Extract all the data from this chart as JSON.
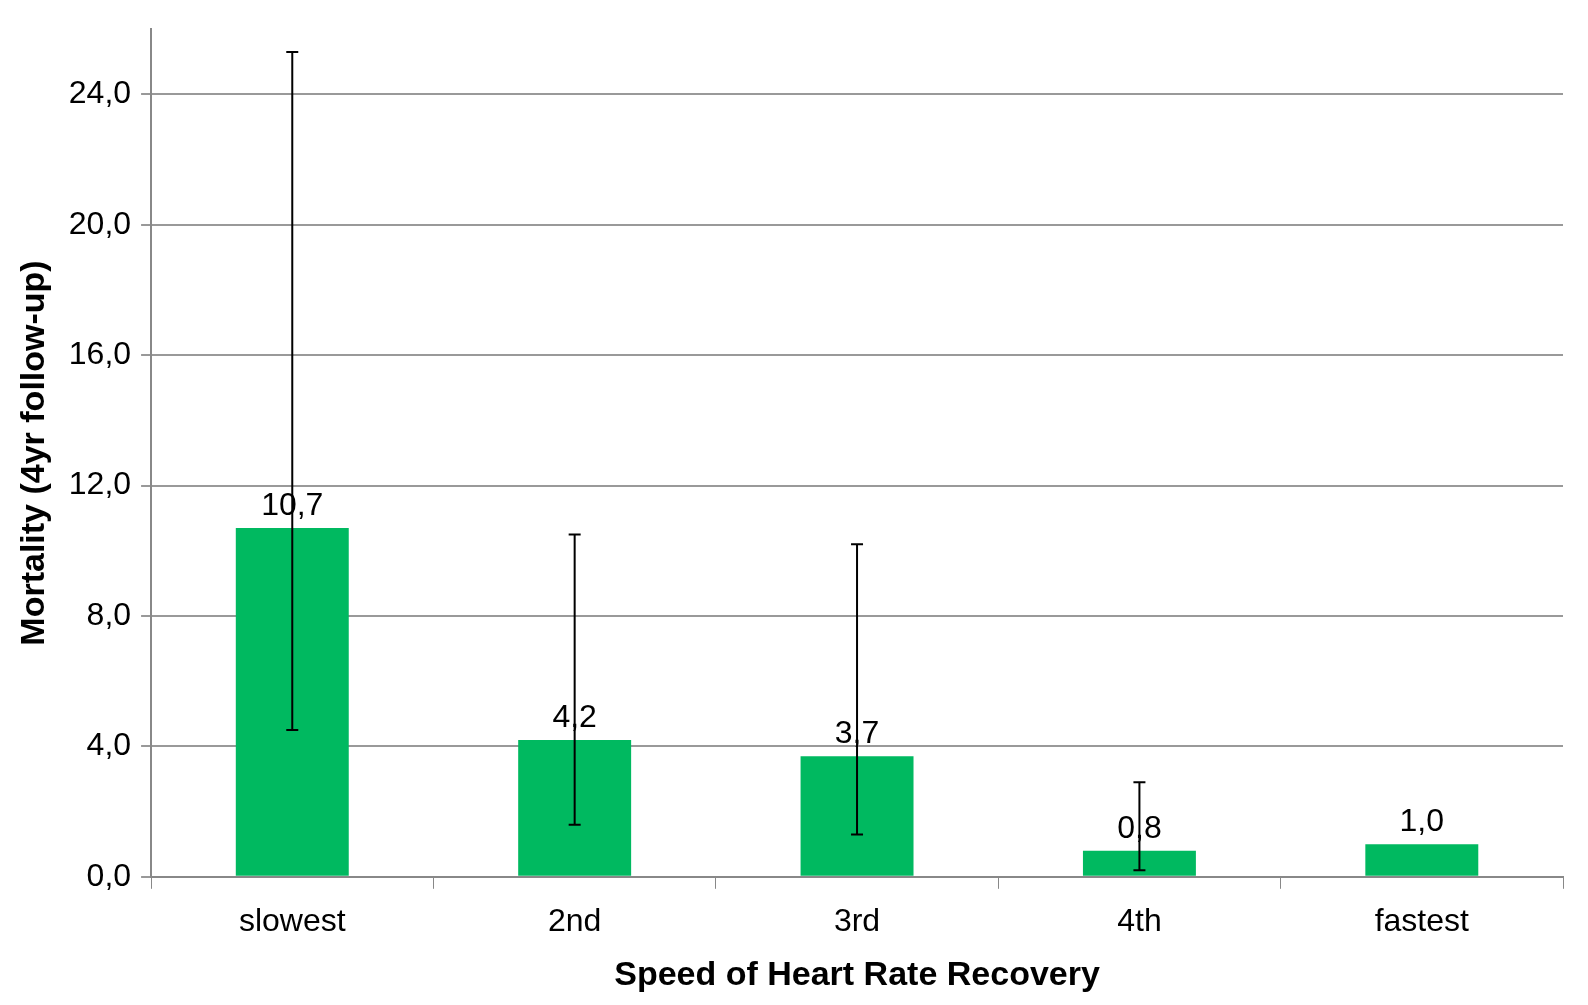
{
  "chart_data": {
    "type": "bar",
    "xlabel": "Speed of Heart Rate Recovery",
    "ylabel": "Mortality (4yr follow-up)",
    "categories": [
      "slowest",
      "2nd",
      "3rd",
      "4th",
      "fastest"
    ],
    "values": [
      10.7,
      4.2,
      3.7,
      0.8,
      1.0
    ],
    "value_labels": [
      "10,7",
      "4,2",
      "3,7",
      "0,8",
      "1,0"
    ],
    "errors": [
      [
        4.5,
        25.3
      ],
      [
        1.6,
        10.5
      ],
      [
        1.3,
        10.2
      ],
      [
        0.2,
        2.9
      ],
      null
    ],
    "color": "#00b960",
    "ylim": [
      0,
      26
    ],
    "yticks": [
      {
        "value": 0,
        "label": "0,0"
      },
      {
        "value": 4,
        "label": "4,0"
      },
      {
        "value": 8,
        "label": "8,0"
      },
      {
        "value": 12,
        "label": "12,0"
      },
      {
        "value": 16,
        "label": "16,0"
      },
      {
        "value": 20,
        "label": "20,0"
      },
      {
        "value": 24,
        "label": "24,0"
      }
    ],
    "grid": "y",
    "legend": false
  }
}
